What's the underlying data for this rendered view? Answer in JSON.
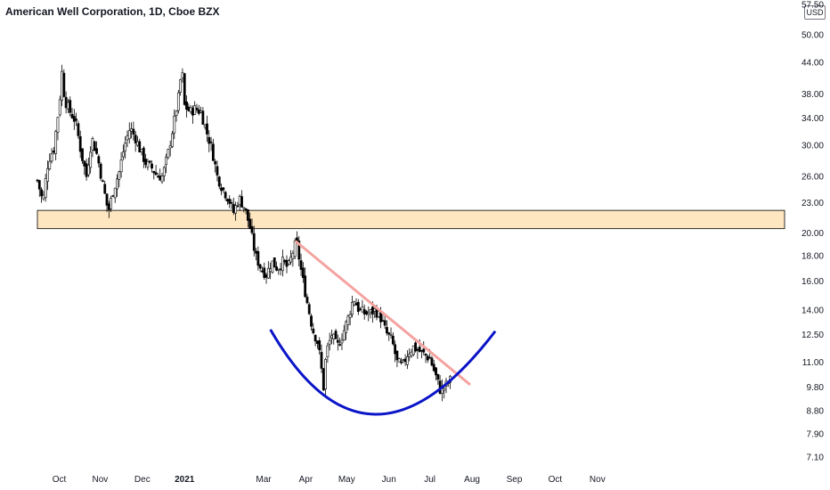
{
  "title": "American Well Corporation, 1D, Cboe BZX",
  "currency": "USD",
  "chart_data": {
    "type": "candlestick",
    "symbol": "American Well Corporation",
    "interval": "1D",
    "exchange": "Cboe BZX",
    "y_scale": "log",
    "ylim": [
      7.1,
      57.5
    ],
    "y_ticks": [
      {
        "value": 57.5,
        "label": "57.50"
      },
      {
        "value": 50,
        "label": "50.00"
      },
      {
        "value": 44,
        "label": "44.00"
      },
      {
        "value": 38,
        "label": "38.00"
      },
      {
        "value": 34,
        "label": "34.00"
      },
      {
        "value": 30,
        "label": "30.00"
      },
      {
        "value": 26,
        "label": "26.00"
      },
      {
        "value": 23,
        "label": "23.00"
      },
      {
        "value": 20,
        "label": "20.00"
      },
      {
        "value": 18,
        "label": "18.00"
      },
      {
        "value": 16,
        "label": "16.00"
      },
      {
        "value": 14,
        "label": "14.00"
      },
      {
        "value": 12.5,
        "label": "12.50"
      },
      {
        "value": 11,
        "label": "11.00"
      },
      {
        "value": 9.8,
        "label": "9.80"
      },
      {
        "value": 8.8,
        "label": "8.80"
      },
      {
        "value": 7.9,
        "label": "7.90"
      },
      {
        "value": 7.1,
        "label": "7.10"
      }
    ],
    "x_ticks": [
      {
        "label": "Oct",
        "day": 16,
        "bold": false
      },
      {
        "label": "Nov",
        "day": 46,
        "bold": false
      },
      {
        "label": "Dec",
        "day": 77,
        "bold": false
      },
      {
        "label": "2021",
        "day": 108,
        "bold": true
      },
      {
        "label": "Mar",
        "day": 166,
        "bold": false
      },
      {
        "label": "Apr",
        "day": 197,
        "bold": false
      },
      {
        "label": "May",
        "day": 227,
        "bold": false
      },
      {
        "label": "Jun",
        "day": 258,
        "bold": false
      },
      {
        "label": "Jul",
        "day": 288,
        "bold": false
      },
      {
        "label": "Aug",
        "day": 319,
        "bold": false
      },
      {
        "label": "Sep",
        "day": 350,
        "bold": false
      },
      {
        "label": "Oct",
        "day": 380,
        "bold": false
      },
      {
        "label": "Nov",
        "day": 411,
        "bold": false
      }
    ],
    "close_path": [
      [
        0,
        25.5
      ],
      [
        4,
        23.0
      ],
      [
        8,
        28.0
      ],
      [
        12,
        29.5
      ],
      [
        16,
        36.0
      ],
      [
        18,
        42.0
      ],
      [
        20,
        37.0
      ],
      [
        24,
        35.0
      ],
      [
        28,
        33.5
      ],
      [
        32,
        29.0
      ],
      [
        36,
        26.0
      ],
      [
        40,
        31.0
      ],
      [
        44,
        28.5
      ],
      [
        48,
        25.0
      ],
      [
        52,
        22.0
      ],
      [
        56,
        24.5
      ],
      [
        60,
        26.5
      ],
      [
        64,
        30.0
      ],
      [
        68,
        32.5
      ],
      [
        72,
        31.0
      ],
      [
        76,
        29.0
      ],
      [
        80,
        27.5
      ],
      [
        84,
        27.0
      ],
      [
        88,
        26.0
      ],
      [
        92,
        26.0
      ],
      [
        96,
        29.0
      ],
      [
        100,
        33.0
      ],
      [
        104,
        38.0
      ],
      [
        106,
        43.0
      ],
      [
        108,
        36.0
      ],
      [
        112,
        35.0
      ],
      [
        116,
        35.5
      ],
      [
        120,
        35.0
      ],
      [
        124,
        32.0
      ],
      [
        128,
        29.5
      ],
      [
        132,
        26.0
      ],
      [
        136,
        24.5
      ],
      [
        140,
        23.5
      ],
      [
        144,
        22.0
      ],
      [
        148,
        23.5
      ],
      [
        152,
        22.5
      ],
      [
        156,
        20.5
      ],
      [
        160,
        18.0
      ],
      [
        164,
        17.0
      ],
      [
        168,
        16.5
      ],
      [
        172,
        17.5
      ],
      [
        176,
        17.0
      ],
      [
        180,
        17.5
      ],
      [
        184,
        17.0
      ],
      [
        188,
        18.5
      ],
      [
        190,
        19.2
      ],
      [
        194,
        16.5
      ],
      [
        198,
        14.5
      ],
      [
        202,
        12.8
      ],
      [
        206,
        12.0
      ],
      [
        210,
        9.8
      ],
      [
        212,
        11.5
      ],
      [
        216,
        12.5
      ],
      [
        220,
        11.8
      ],
      [
        224,
        12.5
      ],
      [
        228,
        13.5
      ],
      [
        232,
        14.8
      ],
      [
        236,
        14.0
      ],
      [
        240,
        13.8
      ],
      [
        244,
        13.8
      ],
      [
        248,
        14.0
      ],
      [
        252,
        13.5
      ],
      [
        256,
        12.6
      ],
      [
        260,
        12.2
      ],
      [
        264,
        11.0
      ],
      [
        268,
        10.8
      ],
      [
        272,
        11.5
      ],
      [
        276,
        11.8
      ],
      [
        280,
        11.6
      ],
      [
        284,
        11.4
      ],
      [
        288,
        11.2
      ],
      [
        292,
        10.4
      ],
      [
        296,
        9.6
      ],
      [
        300,
        9.9
      ],
      [
        304,
        10.2
      ]
    ],
    "annotations": [
      {
        "type": "horizontal_band",
        "from": 20.4,
        "to": 22.2,
        "fill": "#fde6c0",
        "stroke": "#000000"
      },
      {
        "type": "trend_line",
        "points": [
          [
            190,
            19.2
          ],
          [
            317,
            9.95
          ]
        ],
        "color": "#f4a3a0"
      },
      {
        "type": "rounding_bottom_arc",
        "points": [
          [
            171,
            12.8
          ],
          [
            248,
            8.65
          ],
          [
            336,
            12.7
          ]
        ],
        "color": "#0a14c8"
      }
    ]
  }
}
